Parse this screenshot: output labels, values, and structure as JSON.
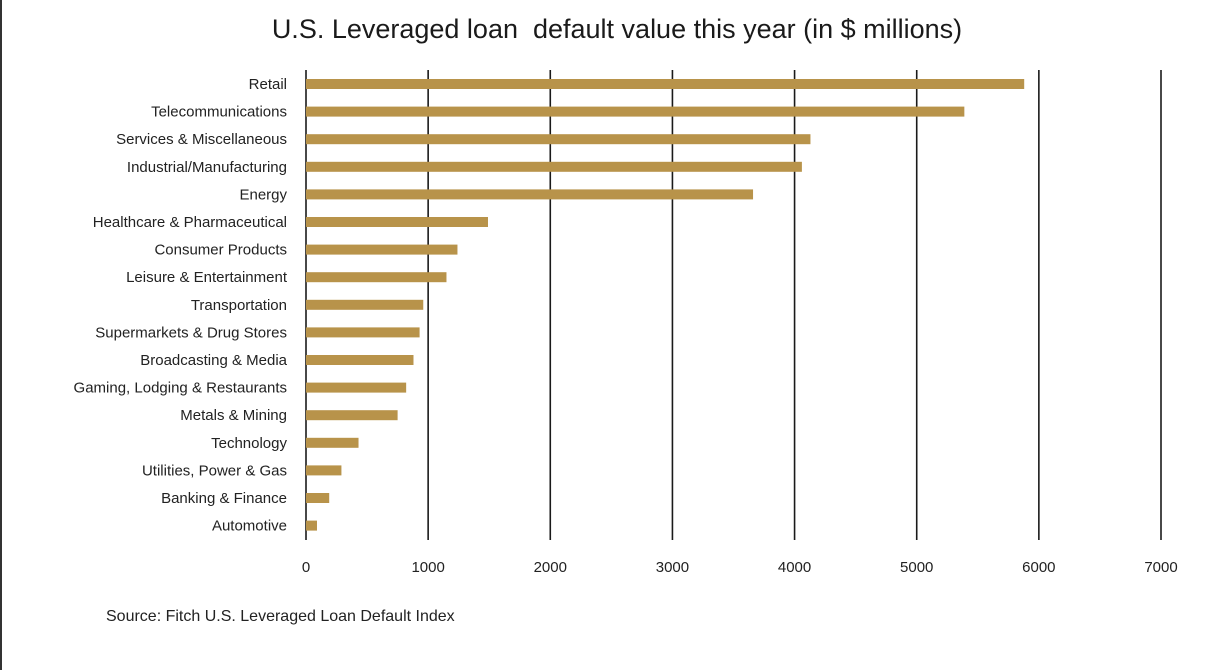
{
  "title": "U.S. Leveraged loan  default value this year (in $ millions)",
  "source": "Source: Fitch U.S. Leveraged Loan Default Index",
  "colors": {
    "bar": "#B8934A",
    "grid": "#1a1a1a",
    "text": "#222222"
  },
  "chart_data": {
    "type": "bar",
    "orientation": "horizontal",
    "title": "U.S. Leveraged loan  default value this year (in $ millions)",
    "xlabel": "",
    "ylabel": "",
    "xlim": [
      0,
      7000
    ],
    "xticks": [
      0,
      1000,
      2000,
      3000,
      4000,
      5000,
      6000,
      7000
    ],
    "grid": "vertical",
    "legend": "none",
    "categories": [
      "Retail",
      "Telecommunications",
      "Services & Miscellaneous",
      "Industrial/Manufacturing",
      "Energy",
      "Healthcare & Pharmaceutical",
      "Consumer Products",
      "Leisure & Entertainment",
      "Transportation",
      "Supermarkets & Drug Stores",
      "Broadcasting & Media",
      "Gaming, Lodging & Restaurants",
      "Metals & Mining",
      "Technology",
      "Utilities, Power & Gas",
      "Banking & Finance",
      "Automotive"
    ],
    "values": [
      5880,
      5390,
      4130,
      4060,
      3660,
      1490,
      1240,
      1150,
      960,
      930,
      880,
      820,
      750,
      430,
      290,
      190,
      90
    ]
  }
}
